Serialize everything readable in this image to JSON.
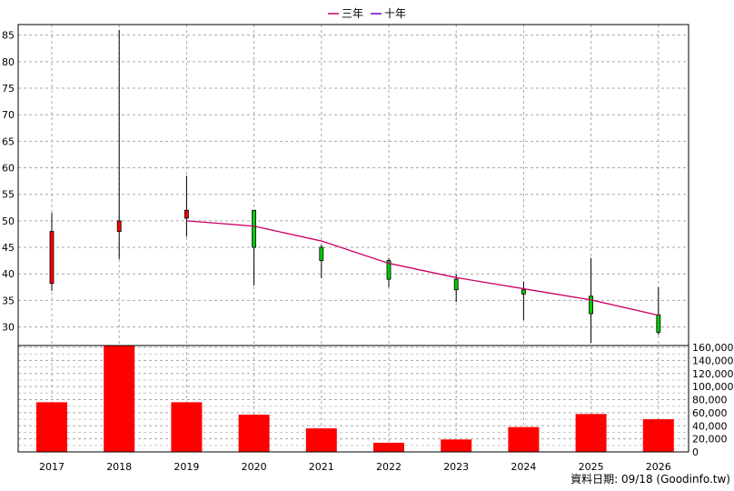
{
  "legend": [
    {
      "label": "三年",
      "color": "#cc0066"
    },
    {
      "label": "十年",
      "color": "#6600cc"
    }
  ],
  "footer": "資料日期: 09/18 (Goodinfo.tw)",
  "chart_data": {
    "type": "candlestick",
    "categories": [
      "2017",
      "2018",
      "2019",
      "2020",
      "2021",
      "2022",
      "2023",
      "2024",
      "2025",
      "2026"
    ],
    "price_axis": {
      "ylim": [
        26.5,
        87
      ],
      "ticks": [
        30,
        35,
        40,
        45,
        50,
        55,
        60,
        65,
        70,
        75,
        80,
        85
      ]
    },
    "candles": [
      {
        "open": 38.2,
        "close": 48.0,
        "high": 51.5,
        "low": 36.8,
        "color": "#ff0000"
      },
      {
        "open": 48.0,
        "close": 50.0,
        "high": 86.0,
        "low": 42.8,
        "color": "#ff0000"
      },
      {
        "open": 50.5,
        "close": 52.0,
        "high": 58.5,
        "low": 47.0,
        "color": "#ff0000"
      },
      {
        "open": 52.0,
        "close": 45.0,
        "high": 52.0,
        "low": 37.8,
        "color": "#00cc00"
      },
      {
        "open": 45.0,
        "close": 42.5,
        "high": 45.5,
        "low": 39.2,
        "color": "#00cc00"
      },
      {
        "open": 42.5,
        "close": 39.0,
        "high": 43.0,
        "low": 37.5,
        "color": "#00cc00"
      },
      {
        "open": 39.0,
        "close": 37.0,
        "high": 40.0,
        "low": 34.7,
        "color": "#00cc00"
      },
      {
        "open": 37.0,
        "close": 36.2,
        "high": 38.5,
        "low": 31.3,
        "color": "#00cc00"
      },
      {
        "open": 35.8,
        "close": 32.5,
        "high": 43.0,
        "low": 27.0,
        "color": "#00cc00"
      },
      {
        "open": 32.3,
        "close": 29.0,
        "high": 37.5,
        "low": 28.5,
        "color": "#00cc00"
      }
    ],
    "series": [
      {
        "name": "三年",
        "color": "#cc0066",
        "values": [
          null,
          null,
          50.0,
          49.0,
          46.2,
          42.0,
          39.3,
          37.2,
          35.1,
          32.2
        ]
      },
      {
        "name": "十年",
        "color": "#6600cc",
        "values": [
          null,
          null,
          null,
          null,
          null,
          null,
          null,
          null,
          null,
          null
        ]
      }
    ],
    "volume_axis": {
      "ylim": [
        0,
        160000
      ],
      "ticks": [
        0,
        20000,
        40000,
        60000,
        80000,
        100000,
        120000,
        140000,
        160000
      ]
    },
    "volume": [
      76000,
      163000,
      76000,
      57000,
      36000,
      14000,
      19000,
      38000,
      58000,
      50000
    ],
    "volume_color": "#ff0000",
    "grid": true
  }
}
